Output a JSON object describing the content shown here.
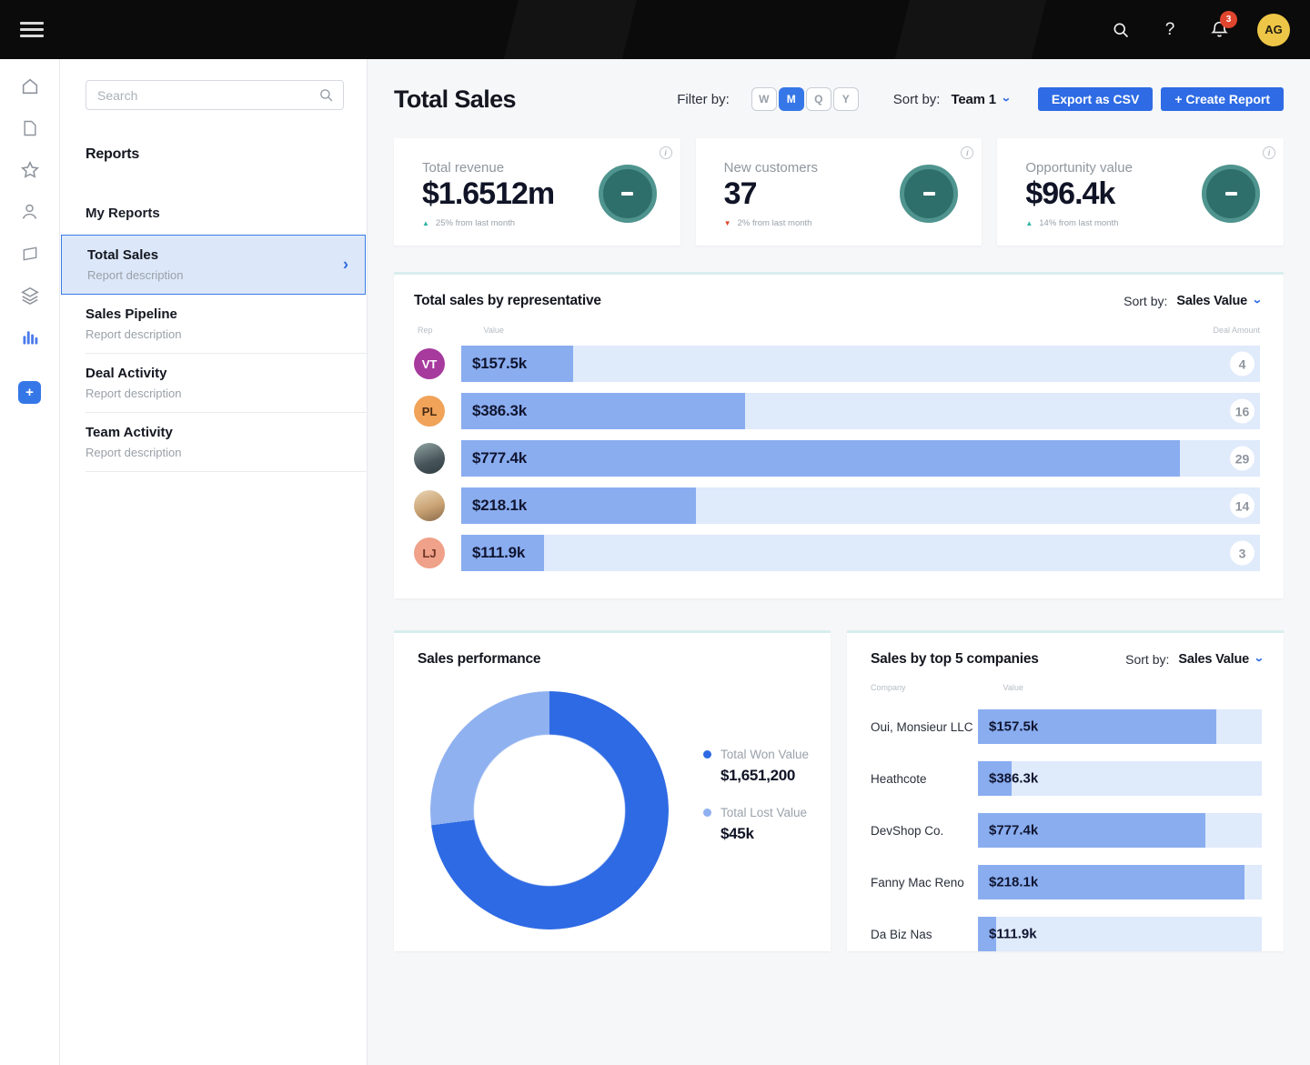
{
  "topbar": {
    "badge_count": "3",
    "avatar_initials": "AG",
    "help_glyph": "?"
  },
  "sidebar": {
    "search_placeholder": "Search",
    "section_title": "Reports",
    "group_title": "My Reports",
    "items": [
      {
        "title": "Total Sales",
        "description": "Report description",
        "selected": true,
        "chevron": "›"
      },
      {
        "title": "Sales Pipeline",
        "description": "Report description"
      },
      {
        "title": "Deal Activity",
        "description": "Report description"
      },
      {
        "title": "Team Activity",
        "description": "Report description"
      }
    ]
  },
  "header": {
    "title": "Total Sales",
    "filter_label": "Filter by:",
    "filters": [
      "W",
      "M",
      "Q",
      "Y"
    ],
    "active_filter": "M",
    "sort_label": "Sort by:",
    "sort_value": "Team 1",
    "export_button": "Export as CSV",
    "create_button": "+ Create Report"
  },
  "kpis": [
    {
      "label": "Total revenue",
      "value": "$1.6512m",
      "delta": "25% from last month",
      "trend_icon": "▲",
      "trend_color": "#2bb3a3"
    },
    {
      "label": "New customers",
      "value": "37",
      "delta": "2% from last month",
      "trend_icon": "▼",
      "trend_color": "#e0482e"
    },
    {
      "label": "Opportunity value",
      "value": "$96.4k",
      "delta": "14% from last month",
      "trend_icon": "▲",
      "trend_color": "#2bb3a3"
    }
  ],
  "chart_data": [
    {
      "type": "bar",
      "title": "Total sales by representative",
      "sort_label": "Sort by:",
      "sort_value": "Sales Value",
      "columns": {
        "rep": "Rep",
        "value": "Value",
        "deals": "Deal Amount"
      },
      "bar_color": "#8aadf0",
      "track_color": "#dfeafb",
      "rows": [
        {
          "rep": "VT",
          "avatar_bg": "#a73a9d",
          "avatar_fg": "#ffffff",
          "value": 157500,
          "value_label": "$157.5k",
          "deals": "4",
          "bar_pct": 14
        },
        {
          "rep": "PL",
          "avatar_bg": "#f0a359",
          "avatar_fg": "#4a2c14",
          "value": 386300,
          "value_label": "$386.3k",
          "deals": "16",
          "bar_pct": 35.5
        },
        {
          "rep": "",
          "avatar_bg": "linear-gradient(160deg,#93a5a3,#47555a 60%,#2f3b40)",
          "avatar_fg": "#ffffff",
          "value": 777400,
          "value_label": "$777.4k",
          "deals": "29",
          "bar_pct": 90
        },
        {
          "rep": "",
          "avatar_bg": "linear-gradient(160deg,#ead6b6,#c9a273 55%,#8a6a4c)",
          "avatar_fg": "#ffffff",
          "value": 218100,
          "value_label": "$218.1k",
          "deals": "14",
          "bar_pct": 29.4
        },
        {
          "rep": "LJ",
          "avatar_bg": "#efa189",
          "avatar_fg": "#6e3426",
          "value": 111900,
          "value_label": "$111.9k",
          "deals": "3",
          "bar_pct": 10.4
        }
      ]
    },
    {
      "type": "donut",
      "title": "Sales performance",
      "segments": [
        {
          "label": "Total Won Value",
          "value": 1651200,
          "value_label": "$1,651,200",
          "color": "#2e6ae3",
          "pct": 73
        },
        {
          "label": "Total Lost Value",
          "value": 45000,
          "value_label": "$45k",
          "color": "#8fb1f0",
          "pct": 27
        }
      ]
    },
    {
      "type": "bar",
      "title": "Sales by top 5 companies",
      "sort_label": "Sort by:",
      "sort_value": "Sales Value",
      "columns": {
        "company": "Company",
        "value": "Value"
      },
      "bar_color": "#8aadf0",
      "track_color": "#dfeafb",
      "rows": [
        {
          "company": "Oui, Monsieur LLC",
          "value": 157500,
          "value_label": "$157.5k",
          "bar_pct": 84
        },
        {
          "company": "Heathcote",
          "value": 386300,
          "value_label": "$386.3k",
          "bar_pct": 12
        },
        {
          "company": "DevShop Co.",
          "value": 777400,
          "value_label": "$777.4k",
          "bar_pct": 80
        },
        {
          "company": "Fanny Mac Reno",
          "value": 218100,
          "value_label": "$218.1k",
          "bar_pct": 94
        },
        {
          "company": "Da Biz Nas",
          "value": 111900,
          "value_label": "$111.9k",
          "bar_pct": 6.4
        }
      ]
    }
  ],
  "colors": {
    "accent": "#2e6be4",
    "teal_fill": "#2f6f6b",
    "teal_ring": "#4f948e",
    "panel_top": "#d9edee",
    "badge_red": "#e0452e",
    "avatar_gold": "#edc647"
  }
}
